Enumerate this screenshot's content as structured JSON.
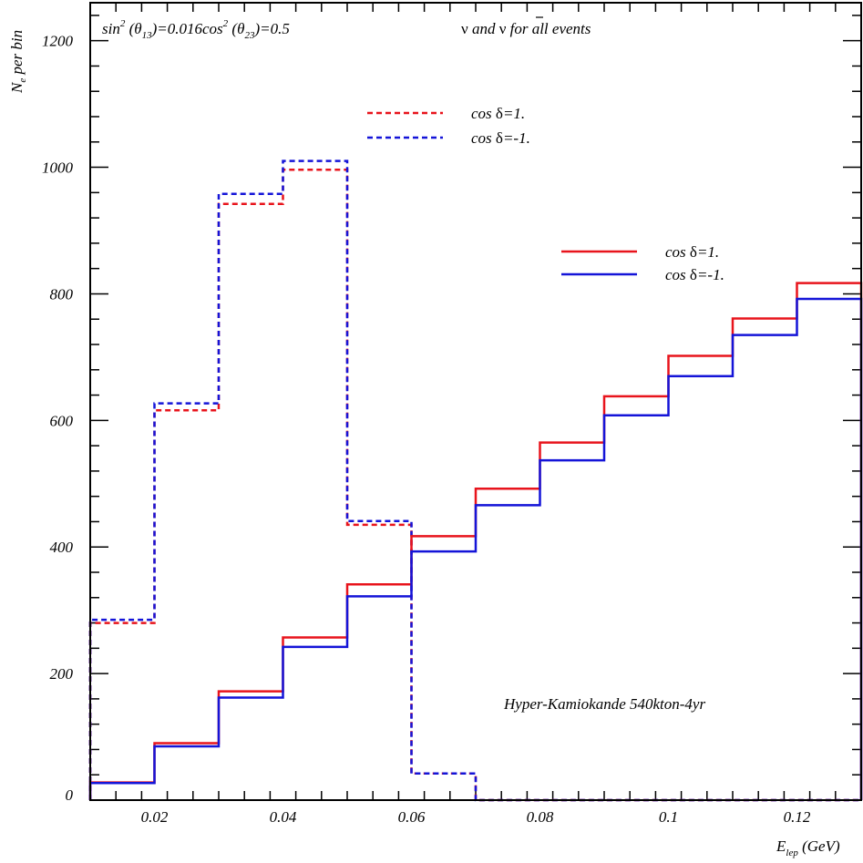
{
  "chart_data": {
    "type": "line",
    "step": true,
    "xlabel": {
      "main": "E",
      "sub": "lep",
      "unit": " (GeV)"
    },
    "ylabel": {
      "main": "N",
      "sub": "e",
      "rest": " per bin"
    },
    "xlim": [
      0.01,
      0.13
    ],
    "ylim": [
      0,
      1260
    ],
    "x_ticks": [
      0.02,
      0.04,
      0.06,
      0.08,
      0.1,
      0.12
    ],
    "x_tick_labels": [
      "0.02",
      "0.04",
      "0.06",
      "0.08",
      "0.1",
      "0.12"
    ],
    "y_ticks": [
      0,
      200,
      400,
      600,
      800,
      1000,
      1200
    ],
    "y_tick_labels": [
      "0",
      "200",
      "400",
      "600",
      "800",
      "1000",
      "1200"
    ],
    "bin_edges": [
      0.01,
      0.02,
      0.03,
      0.04,
      0.05,
      0.06,
      0.07,
      0.08,
      0.09,
      0.1,
      0.11,
      0.12,
      0.13
    ],
    "series": [
      {
        "name": "cos δ=1.",
        "color": "#e8141c",
        "dashed": true,
        "values": [
          280,
          616,
          942,
          996,
          435,
          42,
          0,
          0,
          0,
          0,
          0,
          0
        ]
      },
      {
        "name": "cos δ=-1.",
        "color": "#1414d8",
        "dashed": true,
        "values": [
          285,
          627,
          958,
          1010,
          441,
          42,
          0,
          0,
          0,
          0,
          0,
          0
        ]
      },
      {
        "name": "cos δ=1.",
        "color": "#e8141c",
        "dashed": false,
        "values": [
          28,
          90,
          172,
          257,
          341,
          417,
          492,
          565,
          638,
          702,
          761,
          817
        ]
      },
      {
        "name": "cos δ=-1.",
        "color": "#1414d8",
        "dashed": false,
        "values": [
          27,
          85,
          162,
          242,
          322,
          393,
          466,
          537,
          608,
          670,
          735,
          792
        ]
      }
    ],
    "annotations": {
      "mixing": {
        "sin_pre": "sin",
        "sin_exp": "2",
        "sin_theta": " (θ",
        "sin_sub": "13",
        "sin_val": ")=0.016",
        "cos_pre": "cos",
        "cos_exp": "2",
        "cos_theta": " (θ",
        "cos_sub": "23",
        "cos_val": ")=0.5"
      },
      "events": {
        "nu": "ν",
        "mid": " and ",
        "nubar": "ν",
        "tail": " for all events"
      },
      "experiment": "Hyper-Kamiokande 540kton-4yr"
    },
    "legends": {
      "dashed": [
        {
          "pre": "cos ",
          "delta": "δ",
          "val": "=1."
        },
        {
          "pre": "cos ",
          "delta": "δ",
          "val": "=-1."
        }
      ],
      "solid": [
        {
          "pre": "cos ",
          "delta": "δ",
          "val": "=1."
        },
        {
          "pre": "cos ",
          "delta": "δ",
          "val": "=-1."
        }
      ]
    }
  }
}
